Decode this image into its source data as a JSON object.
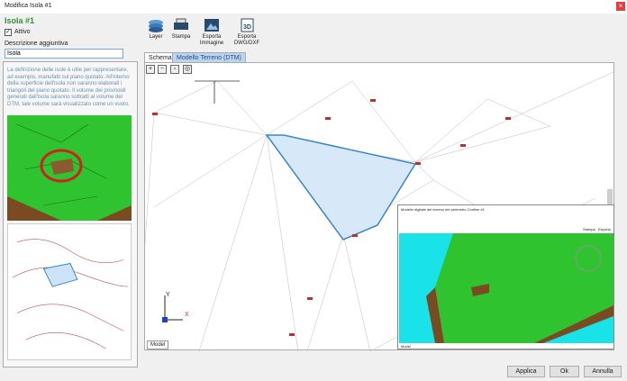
{
  "window": {
    "title": "Modifica Isola #1",
    "close": "×"
  },
  "left": {
    "heading": "Isola #1",
    "attivo_label": "Attivo",
    "attivo_checked": true,
    "desc_label": "Descrizione aggiuntiva",
    "desc_value": "Isola",
    "info": "La definizione delle isole è utile per rappresentare, ad esempio, manufatti sul piano quotato. All'interno della superficie dell'isola non saranno elaborati i triangoli del piano quotato. Il volume dei prismoidi generati dall'isola saranno sottratti al volume del DTM, tale volume sarà visualizzato come un vuoto."
  },
  "toolbar": [
    {
      "label": "Layer",
      "icon": "layers-icon"
    },
    {
      "label": "Stampa",
      "icon": "printer-icon"
    },
    {
      "label": "Esporta Immagine",
      "icon": "image-icon"
    },
    {
      "label": "Esporta DWG/DXF",
      "icon": "3d-file-icon"
    }
  ],
  "tabs": [
    "Schema",
    "Modello Terreno (DTM)"
  ],
  "zoom_buttons": [
    "zoom-in-icon",
    "zoom-out-icon",
    "zoom-window-icon",
    "zoom-extents-icon"
  ],
  "canvas": {
    "model_tab": "Model",
    "axis_y": "Y",
    "axis_x": "X"
  },
  "inset": {
    "title": "Modello digitale del terreno del perimetro Confine #1",
    "model_tab": "Model",
    "stampa": "Stampa",
    "esporta": "Esporta Immagine"
  },
  "buttons": {
    "apply": "Applica",
    "ok": "Ok",
    "cancel": "Annulla"
  },
  "colors": {
    "accent": "#3a8a3a",
    "island_fill": "#d7e8f8",
    "island_stroke": "#3c86c8",
    "terrain": "#2fc42f",
    "water": "#19e3e8"
  }
}
